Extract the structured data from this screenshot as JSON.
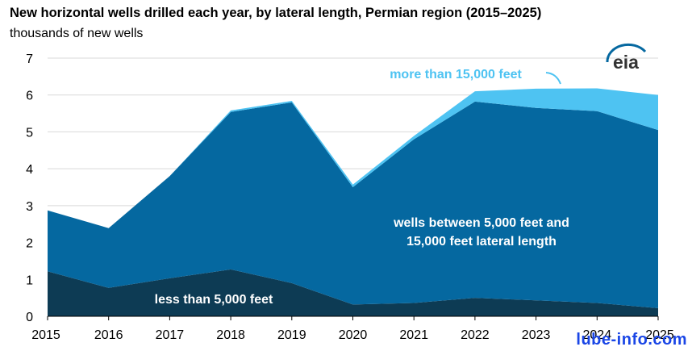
{
  "title": "New horizontal wells drilled each year, by lateral length, Permian region (2015–2025)",
  "subtitle": "thousands of new wells",
  "logo_text": "eia",
  "watermark": "lube-info.com",
  "colors": {
    "less_than_5000": "#0d3b54",
    "between": "#0568a0",
    "more_than_15000": "#4ec3f2",
    "grid": "#d9d9d9",
    "label_light": "#ffffff",
    "label_accent": "#4ec3f2",
    "watermark": "#1a46e6"
  },
  "chart_data": {
    "type": "area",
    "stacked": true,
    "x": [
      "2015",
      "2016",
      "2017",
      "2018",
      "2019",
      "2020",
      "2021",
      "2022",
      "2023",
      "2024",
      "2025"
    ],
    "ylim": [
      0,
      7
    ],
    "yticks": [
      "0",
      "1",
      "2",
      "3",
      "4",
      "5",
      "6",
      "7"
    ],
    "grid": true,
    "series": [
      {
        "name": "less than 5,000 feet",
        "values": [
          1.22,
          0.77,
          1.03,
          1.27,
          0.9,
          0.32,
          0.36,
          0.5,
          0.43,
          0.36,
          0.22
        ]
      },
      {
        "name": "wells between 5,000 feet and 15,000 feet lateral length",
        "values": [
          1.65,
          1.62,
          2.77,
          4.27,
          4.9,
          3.18,
          4.44,
          5.32,
          5.22,
          5.2,
          4.83
        ]
      },
      {
        "name": "more than 15,000 feet",
        "values": [
          0.0,
          0.0,
          0.0,
          0.04,
          0.04,
          0.07,
          0.09,
          0.28,
          0.52,
          0.62,
          0.95
        ]
      }
    ],
    "labels": {
      "less": "less than 5,000 feet",
      "between_line1": "wells between 5,000 feet and",
      "between_line2": "15,000 feet lateral length",
      "more": "more than 15,000 feet"
    }
  }
}
